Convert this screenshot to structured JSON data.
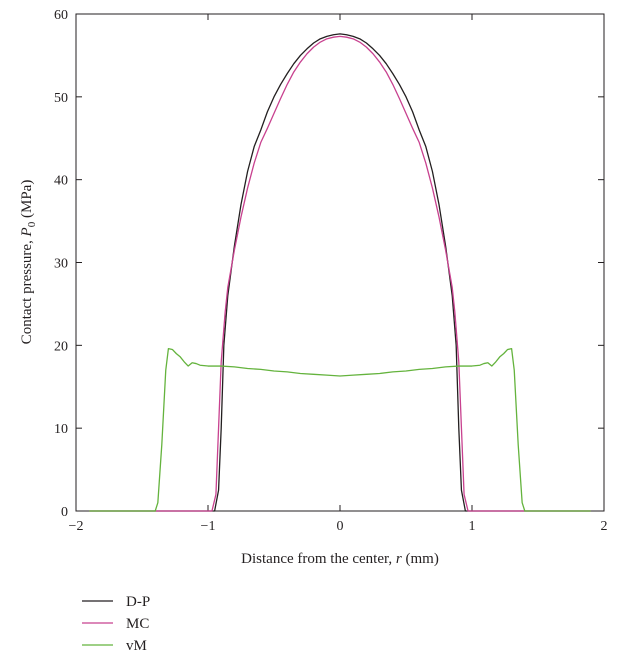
{
  "chart_data": {
    "type": "line",
    "title": "",
    "xlabel": "Distance from the center, r (mm)",
    "xlabel_parts": {
      "prefix": "Distance from the center, ",
      "var": "r",
      "suffix": " (mm)"
    },
    "ylabel": "Contact pressure, P0 (MPa)",
    "ylabel_parts": {
      "prefix": "Contact pressure, ",
      "var": "P",
      "sub": "0",
      "suffix": " (MPa)"
    },
    "xlim": [
      -2,
      2
    ],
    "ylim": [
      0,
      60
    ],
    "xticks": [
      -2,
      -1,
      0,
      1,
      2
    ],
    "xtick_labels": [
      "−2",
      "−1",
      "0",
      "1",
      "2"
    ],
    "yticks": [
      0,
      10,
      20,
      30,
      40,
      50,
      60
    ],
    "ytick_labels": [
      "0",
      "10",
      "20",
      "30",
      "40",
      "50",
      "60"
    ],
    "grid": false,
    "legend_position": "bottom-left",
    "series": [
      {
        "name": "D-P",
        "color": "#231f20",
        "x": [
          -1.9,
          -0.95,
          -0.92,
          -0.9,
          -0.88,
          -0.85,
          -0.8,
          -0.75,
          -0.7,
          -0.65,
          -0.6,
          -0.55,
          -0.5,
          -0.45,
          -0.4,
          -0.35,
          -0.3,
          -0.25,
          -0.2,
          -0.15,
          -0.1,
          -0.05,
          0,
          0.05,
          0.1,
          0.15,
          0.2,
          0.25,
          0.3,
          0.35,
          0.4,
          0.45,
          0.5,
          0.55,
          0.6,
          0.65,
          0.7,
          0.75,
          0.8,
          0.85,
          0.88,
          0.9,
          0.92,
          0.95,
          1.9
        ],
        "y": [
          0,
          0,
          2.5,
          10,
          20,
          26,
          32,
          37,
          41,
          44,
          46,
          48.2,
          50,
          51.5,
          52.8,
          54,
          55,
          55.8,
          56.5,
          57,
          57.3,
          57.5,
          57.6,
          57.5,
          57.3,
          57,
          56.5,
          55.8,
          55,
          54,
          52.8,
          51.5,
          50,
          48.2,
          46,
          44,
          41,
          37,
          32,
          26,
          20,
          10,
          2.5,
          0,
          0
        ]
      },
      {
        "name": "MC",
        "color": "#c8418f",
        "x": [
          -1.9,
          -0.97,
          -0.94,
          -0.92,
          -0.9,
          -0.87,
          -0.85,
          -0.8,
          -0.75,
          -0.7,
          -0.65,
          -0.6,
          -0.55,
          -0.5,
          -0.45,
          -0.4,
          -0.35,
          -0.3,
          -0.25,
          -0.2,
          -0.15,
          -0.1,
          -0.05,
          0,
          0.05,
          0.1,
          0.15,
          0.2,
          0.25,
          0.3,
          0.35,
          0.4,
          0.45,
          0.5,
          0.55,
          0.6,
          0.65,
          0.7,
          0.75,
          0.8,
          0.85,
          0.87,
          0.9,
          0.92,
          0.94,
          0.97,
          1.9
        ],
        "y": [
          0,
          0,
          2,
          10,
          18,
          24,
          27,
          31.5,
          35.5,
          39,
          42,
          44.5,
          46.2,
          48,
          49.8,
          51.5,
          53,
          54.2,
          55.2,
          56,
          56.6,
          57,
          57.2,
          57.3,
          57.2,
          57,
          56.6,
          56,
          55.2,
          54.2,
          53,
          51.5,
          49.8,
          48,
          46.2,
          44.5,
          42,
          39,
          35.5,
          31.5,
          27,
          24,
          18,
          10,
          2,
          0,
          0
        ]
      },
      {
        "name": "vM",
        "color": "#64b33d",
        "x": [
          -1.9,
          -1.4,
          -1.38,
          -1.35,
          -1.32,
          -1.3,
          -1.27,
          -1.24,
          -1.21,
          -1.18,
          -1.15,
          -1.12,
          -1.09,
          -1.06,
          -1.0,
          -0.9,
          -0.8,
          -0.7,
          -0.6,
          -0.5,
          -0.4,
          -0.3,
          -0.2,
          -0.1,
          0,
          0.1,
          0.2,
          0.3,
          0.4,
          0.5,
          0.6,
          0.7,
          0.8,
          0.9,
          1.0,
          1.06,
          1.09,
          1.12,
          1.15,
          1.18,
          1.21,
          1.24,
          1.27,
          1.3,
          1.32,
          1.35,
          1.38,
          1.4,
          1.9
        ],
        "y": [
          0,
          0,
          1,
          8,
          17,
          19.6,
          19.5,
          19,
          18.6,
          18,
          17.5,
          17.9,
          17.8,
          17.6,
          17.5,
          17.5,
          17.4,
          17.2,
          17.1,
          16.9,
          16.8,
          16.6,
          16.5,
          16.4,
          16.3,
          16.4,
          16.5,
          16.6,
          16.8,
          16.9,
          17.1,
          17.2,
          17.4,
          17.5,
          17.5,
          17.6,
          17.8,
          17.9,
          17.5,
          18,
          18.6,
          19,
          19.5,
          19.6,
          17,
          8,
          1,
          0,
          0
        ]
      }
    ]
  }
}
